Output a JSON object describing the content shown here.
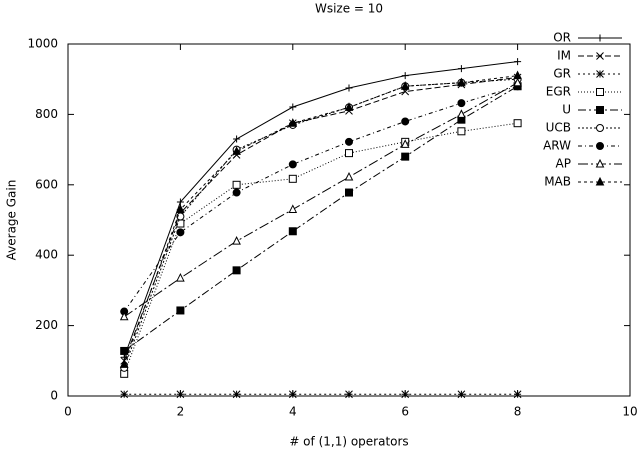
{
  "chart_data": {
    "type": "line",
    "title": "Wsize = 10",
    "x_label": "# of (1,1) operators",
    "y_label": "Average Gain",
    "x": [
      1,
      2,
      3,
      4,
      5,
      6,
      7,
      8
    ],
    "xlim": [
      0,
      10
    ],
    "xticks": [
      0,
      2,
      4,
      6,
      8,
      10
    ],
    "ylim": [
      0,
      1000
    ],
    "yticks": [
      0,
      200,
      400,
      600,
      800,
      1000
    ],
    "grid": false,
    "legend": "top-right",
    "series": [
      {
        "name": "OR",
        "color": "#000000",
        "marker": "plus",
        "dash": "none",
        "values": [
          110,
          551,
          730,
          821,
          875,
          910,
          930,
          950
        ]
      },
      {
        "name": "IM",
        "color": "#000000",
        "marker": "cross",
        "dash": "6,3",
        "values": [
          100,
          520,
          685,
          775,
          810,
          865,
          885,
          905
        ]
      },
      {
        "name": "GR",
        "color": "#000000",
        "marker": "star",
        "dash": "2,3",
        "values": [
          5,
          5,
          5,
          5,
          5,
          5,
          5,
          5
        ]
      },
      {
        "name": "EGR",
        "color": "#000000",
        "marker": "square-open",
        "dash": "1,2",
        "values": [
          63,
          490,
          600,
          617,
          690,
          722,
          752,
          775
        ]
      },
      {
        "name": "U",
        "color": "#000000",
        "marker": "square-filled",
        "dash": "8,3,2,3",
        "values": [
          128,
          243,
          357,
          468,
          578,
          680,
          785,
          880
        ]
      },
      {
        "name": "UCB",
        "color": "#000000",
        "marker": "circle-open",
        "dash": "2,2",
        "values": [
          80,
          510,
          700,
          770,
          820,
          880,
          890,
          900
        ]
      },
      {
        "name": "ARW",
        "color": "#000000",
        "marker": "circle-filled",
        "dash": "4,3,1,3",
        "values": [
          240,
          465,
          578,
          658,
          722,
          780,
          832,
          880
        ]
      },
      {
        "name": "AP",
        "color": "#000000",
        "marker": "triangle-open",
        "dash": "10,3,2,3",
        "values": [
          225,
          335,
          440,
          530,
          622,
          715,
          800,
          890
        ]
      },
      {
        "name": "MAB",
        "color": "#000000",
        "marker": "triangle-filled",
        "dash": "3,3",
        "values": [
          90,
          530,
          695,
          775,
          820,
          880,
          890,
          910
        ]
      }
    ]
  }
}
